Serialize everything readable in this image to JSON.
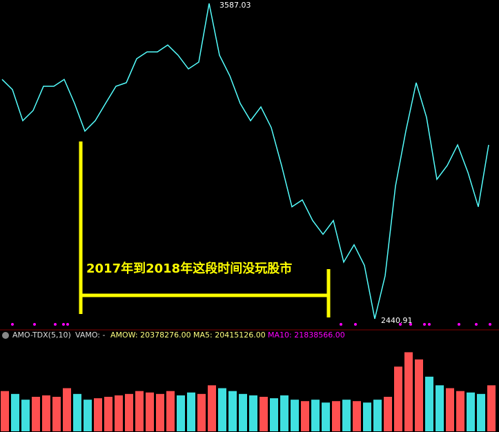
{
  "chart_data": {
    "type": "line",
    "annotations": {
      "high": "3587.03",
      "low": "2440.91",
      "note": "2017年到2018年这段时间没玩股市"
    },
    "ylim": [
      2440.91,
      3587.03
    ],
    "price": {
      "color": "#54ffff",
      "values": [
        3311,
        3274,
        3161,
        3198,
        3286,
        3286,
        3311,
        3224,
        3123,
        3161,
        3224,
        3286,
        3299,
        3386,
        3411,
        3411,
        3436,
        3399,
        3349,
        3374,
        3587.03,
        3399,
        3324,
        3224,
        3161,
        3211,
        3136,
        2998,
        2848,
        2873,
        2798,
        2748,
        2798,
        2647,
        2710,
        2635,
        2440.91,
        2597,
        2923,
        3123,
        3299,
        3173,
        2948,
        2998,
        3073,
        2973,
        2848,
        3073
      ]
    },
    "indicator": {
      "name": "AMO-TDX(5,10)",
      "vamo": "VAMO: -",
      "amow": "AMOW: 20378276.00",
      "ma5": "MA5: 20415126.00",
      "ma10": "MA10: 21838566.00"
    },
    "volume": {
      "ylim": [
        0,
        60000000
      ],
      "values": [
        28000000,
        26000000,
        22000000,
        24000000,
        25000000,
        24000000,
        30000000,
        26000000,
        22000000,
        23000000,
        24000000,
        25000000,
        26000000,
        28000000,
        27000000,
        26000000,
        28000000,
        25000000,
        27000000,
        26000000,
        32000000,
        30000000,
        28000000,
        26000000,
        25000000,
        24000000,
        23000000,
        25000000,
        22000000,
        21000000,
        22000000,
        20000000,
        21000000,
        22000000,
        21000000,
        20000000,
        22000000,
        24000000,
        45000000,
        55000000,
        50000000,
        38000000,
        32000000,
        30000000,
        28000000,
        27000000,
        26000000,
        32000000
      ]
    }
  }
}
